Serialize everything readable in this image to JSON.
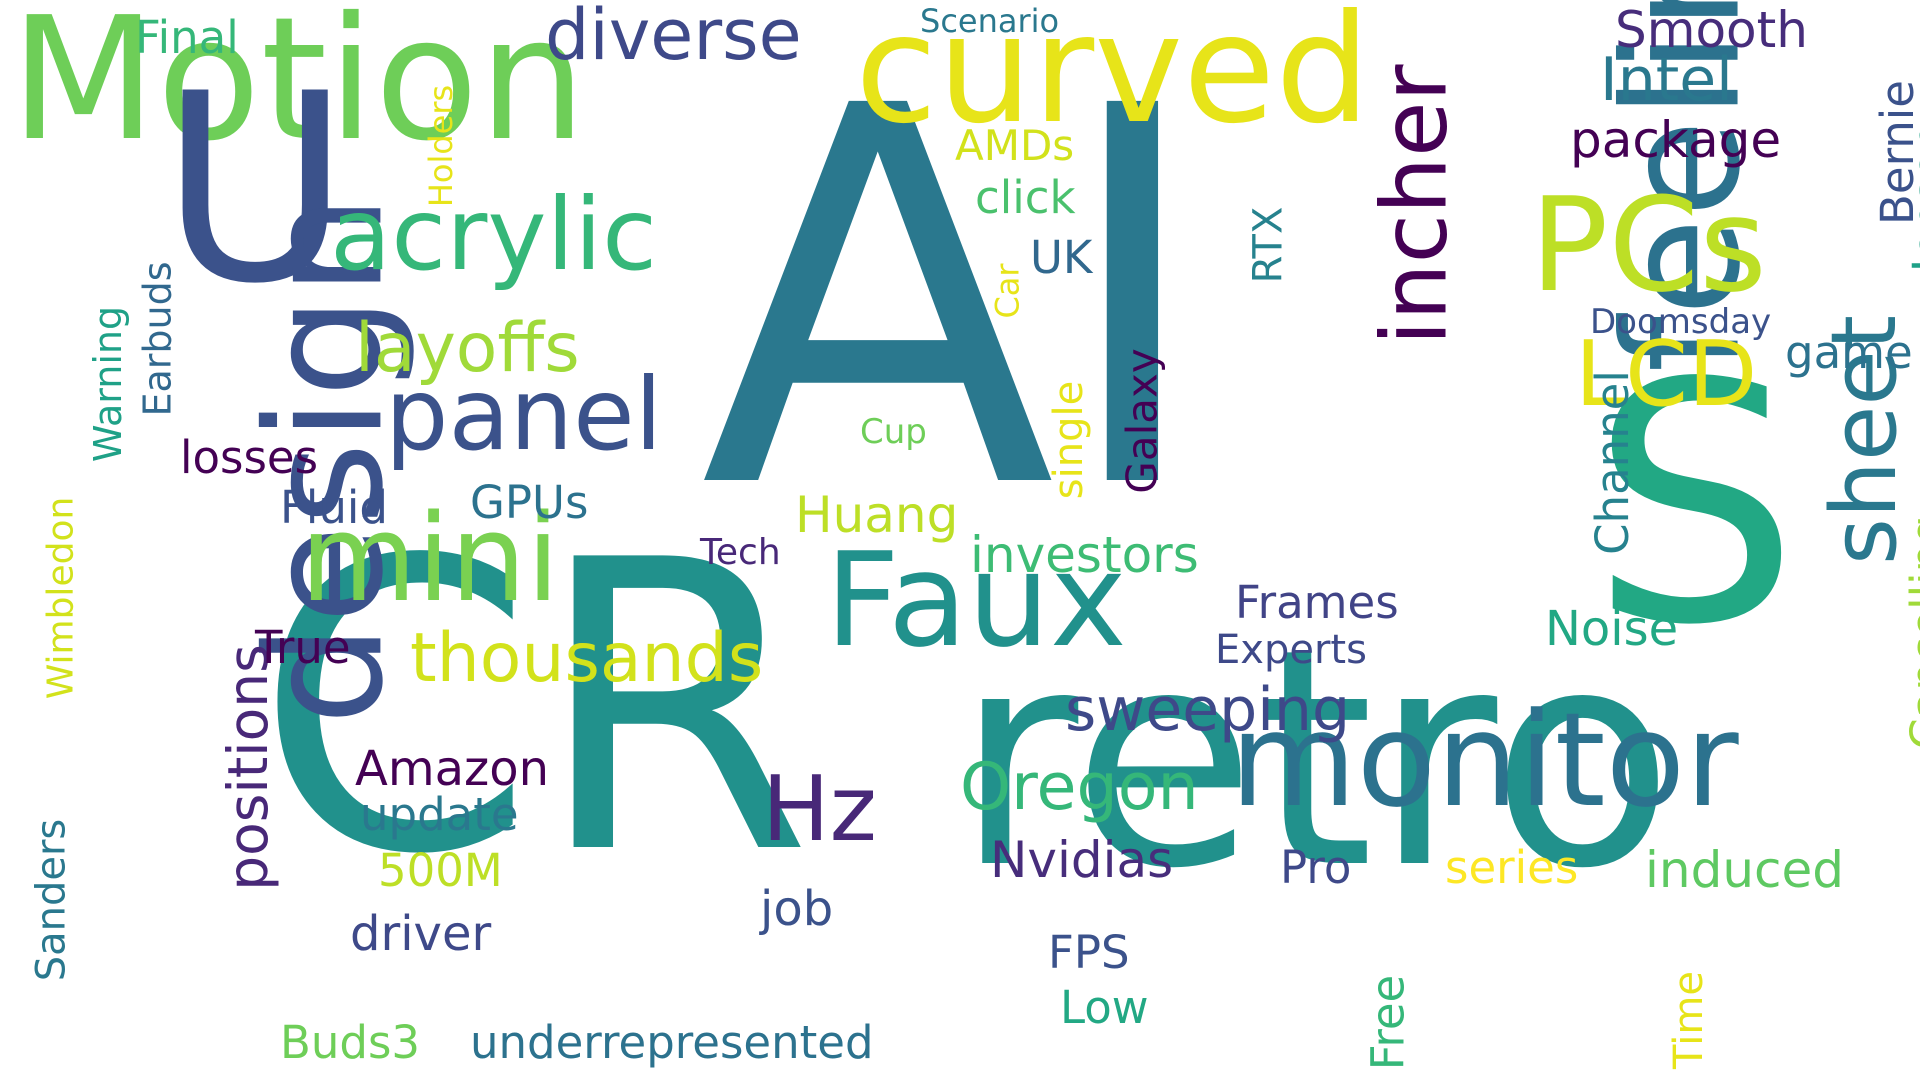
{
  "words": [
    {
      "id": "ai",
      "text": "AI",
      "color": "#2a788e"
    },
    {
      "id": "cr",
      "text": "CR",
      "color": "#21918c"
    },
    {
      "id": "retro",
      "text": "retro",
      "color": "#21918c"
    },
    {
      "id": "motion",
      "text": "Motion",
      "color": "#6ece58"
    },
    {
      "id": "u",
      "text": "U",
      "color": "#3b528b"
    },
    {
      "id": "s",
      "text": "S",
      "color": "#22a884"
    },
    {
      "id": "curved",
      "text": "curved",
      "color": "#e7e419"
    },
    {
      "id": "design",
      "text": "design",
      "color": "#3b528b"
    },
    {
      "id": "feeling",
      "text": "feeling",
      "color": "#2c728e"
    },
    {
      "id": "monitor",
      "text": "monitor",
      "color": "#2c728e"
    },
    {
      "id": "faux",
      "text": "Faux",
      "color": "#21918c"
    },
    {
      "id": "mini",
      "text": "mini",
      "color": "#7ad151"
    },
    {
      "id": "acrylic",
      "text": "acrylic",
      "color": "#35b779"
    },
    {
      "id": "pcs",
      "text": "PCs",
      "color": "#bddf26"
    },
    {
      "id": "panel",
      "text": "panel",
      "color": "#3b528b"
    },
    {
      "id": "incher",
      "text": "incher",
      "color": "#440154"
    },
    {
      "id": "sheet",
      "text": "sheet",
      "color": "#2a788e"
    },
    {
      "id": "lcd",
      "text": "LCD",
      "color": "#e7e419"
    },
    {
      "id": "hz",
      "text": "Hz",
      "color": "#482878"
    },
    {
      "id": "diverse",
      "text": "diverse",
      "color": "#3e4989"
    },
    {
      "id": "intel",
      "text": "Intel",
      "color": "#2a788e"
    },
    {
      "id": "smooth",
      "text": "Smooth",
      "color": "#472d7b"
    },
    {
      "id": "package",
      "text": "package",
      "color": "#440154"
    },
    {
      "id": "layoffs",
      "text": "layoffs",
      "color": "#a0da39"
    },
    {
      "id": "thousands",
      "text": "thousands",
      "color": "#d2e21b"
    },
    {
      "id": "sweeping",
      "text": "sweeping",
      "color": "#3e4989"
    },
    {
      "id": "oregon",
      "text": "Oregon",
      "color": "#35b779"
    },
    {
      "id": "positions",
      "text": "positions",
      "color": "#482878"
    },
    {
      "id": "bernie",
      "text": "Bernie",
      "color": "#3b528b"
    },
    {
      "id": "jensen",
      "text": "Jensen",
      "color": "#1fa187"
    },
    {
      "id": "final",
      "text": "Final",
      "color": "#35b779"
    },
    {
      "id": "scenario",
      "text": "Scenario",
      "color": "#2a788e"
    },
    {
      "id": "amds",
      "text": "AMDs",
      "color": "#d2e21b"
    },
    {
      "id": "click",
      "text": "click",
      "color": "#4ac16d"
    },
    {
      "id": "uk",
      "text": "UK",
      "color": "#31688e"
    },
    {
      "id": "rtx",
      "text": "RTX",
      "color": "#26828e"
    },
    {
      "id": "holders",
      "text": "Holders",
      "color": "#e7e419"
    },
    {
      "id": "car",
      "text": "Car",
      "color": "#e7e419"
    },
    {
      "id": "doomsday",
      "text": "Doomsday",
      "color": "#3b528b"
    },
    {
      "id": "game",
      "text": "game",
      "color": "#2c728e"
    },
    {
      "id": "galaxy",
      "text": "Galaxy",
      "color": "#440154"
    },
    {
      "id": "single",
      "text": "single",
      "color": "#e7e419"
    },
    {
      "id": "cup",
      "text": "Cup",
      "color": "#6ece58"
    },
    {
      "id": "channel",
      "text": "Channel",
      "color": "#26828e"
    },
    {
      "id": "cancelling",
      "text": "Cancelling",
      "color": "#a0da39"
    },
    {
      "id": "warning",
      "text": "Warning",
      "color": "#1fa187"
    },
    {
      "id": "earbuds",
      "text": "Earbuds",
      "color": "#31688e"
    },
    {
      "id": "wimbledon",
      "text": "Wimbledon",
      "color": "#d2e21b"
    },
    {
      "id": "losses",
      "text": "losses",
      "color": "#440154"
    },
    {
      "id": "fluid",
      "text": "Fluid",
      "color": "#3b528b"
    },
    {
      "id": "gpus",
      "text": "GPUs",
      "color": "#2c728e"
    },
    {
      "id": "tech",
      "text": "Tech",
      "color": "#482878"
    },
    {
      "id": "huang",
      "text": "Huang",
      "color": "#bddf26"
    },
    {
      "id": "investors",
      "text": "investors",
      "color": "#3dbc74"
    },
    {
      "id": "frames",
      "text": "Frames",
      "color": "#414487"
    },
    {
      "id": "experts",
      "text": "Experts",
      "color": "#3e4989"
    },
    {
      "id": "noise",
      "text": "Noise",
      "color": "#22a884"
    },
    {
      "id": "true",
      "text": "True",
      "color": "#440154"
    },
    {
      "id": "amazon",
      "text": "Amazon",
      "color": "#440154"
    },
    {
      "id": "update",
      "text": "update",
      "color": "#2a788e"
    },
    {
      "id": "500m",
      "text": "500M",
      "color": "#bddf26"
    },
    {
      "id": "nvidias",
      "text": "Nvidias",
      "color": "#472d7b"
    },
    {
      "id": "pro",
      "text": "Pro",
      "color": "#3e4989"
    },
    {
      "id": "series",
      "text": "series",
      "color": "#fde725"
    },
    {
      "id": "induced",
      "text": "induced",
      "color": "#5ec962"
    },
    {
      "id": "job",
      "text": "job",
      "color": "#3b528b"
    },
    {
      "id": "driver",
      "text": "driver",
      "color": "#3e4989"
    },
    {
      "id": "fps",
      "text": "FPS",
      "color": "#3b528b"
    },
    {
      "id": "low",
      "text": "Low",
      "color": "#22a884"
    },
    {
      "id": "free",
      "text": "Free",
      "color": "#35b779"
    },
    {
      "id": "time",
      "text": "Time",
      "color": "#e7e419"
    },
    {
      "id": "sanders",
      "text": "Sanders",
      "color": "#2a788e"
    },
    {
      "id": "buds3",
      "text": "Buds3",
      "color": "#6ece58"
    },
    {
      "id": "underrepresented",
      "text": "underrepresented",
      "color": "#2c728e"
    }
  ]
}
